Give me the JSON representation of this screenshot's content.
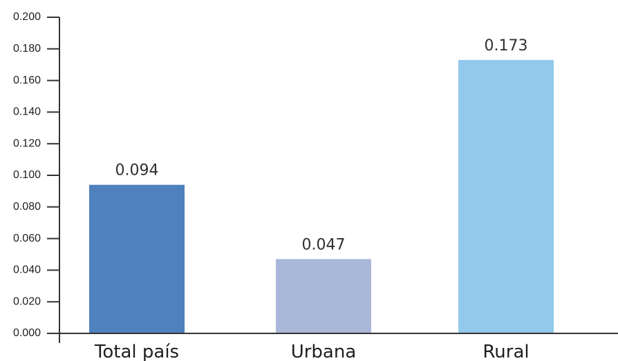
{
  "chart_data": {
    "type": "bar",
    "title": "",
    "xlabel": "",
    "ylabel": "",
    "categories": [
      "Total país",
      "Urbana",
      "Rural"
    ],
    "values": [
      0.094,
      0.047,
      0.173
    ],
    "value_labels": [
      "0.094",
      "0.047",
      "0.173"
    ],
    "colors": [
      "#4f81bd",
      "#a9b8d8",
      "#93c9ec"
    ],
    "ylim": [
      0,
      0.2
    ],
    "yticks": [
      0.0,
      0.02,
      0.04,
      0.06,
      0.08,
      0.1,
      0.12,
      0.14,
      0.16,
      0.18,
      0.2
    ],
    "ytick_labels": [
      "0.000",
      "0.020",
      "0.040",
      "0.060",
      "0.080",
      "0.100",
      "0.120",
      "0.140",
      "0.160",
      "0.180",
      "0.200"
    ],
    "grid": false,
    "legend": "none"
  }
}
